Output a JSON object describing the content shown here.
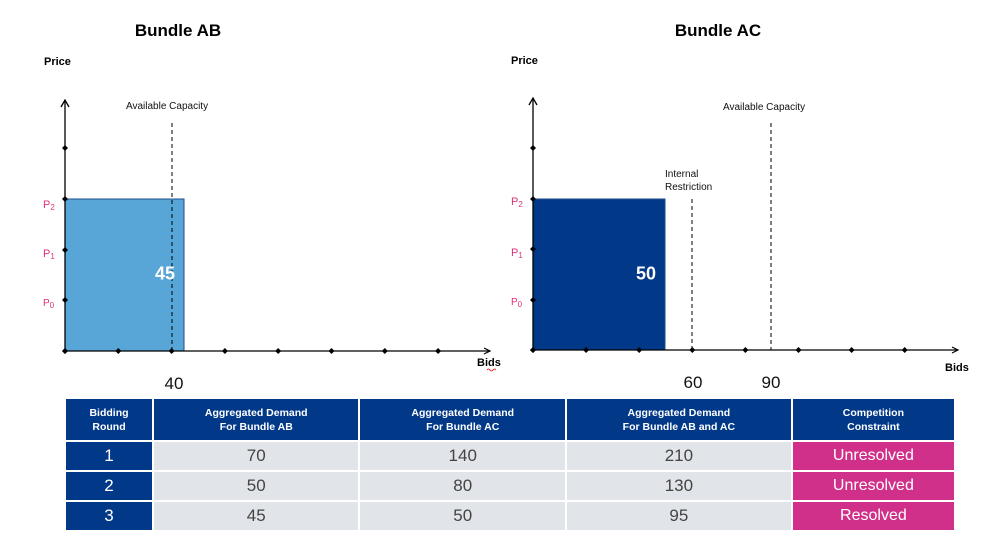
{
  "charts": [
    {
      "title": "Bundle AB",
      "ylabel": "Price",
      "xlabel": "Bids",
      "price_levels": [
        "P",
        "P",
        "P"
      ],
      "price_subs": [
        "2",
        "1",
        "0"
      ],
      "bar_value": "45",
      "bar_color": "#58a6d8",
      "lines": [
        {
          "label": "Available Capacity",
          "value": "40"
        }
      ]
    },
    {
      "title": "Bundle AC",
      "ylabel": "Price",
      "xlabel": "Bids",
      "price_levels": [
        "P",
        "P",
        "P"
      ],
      "price_subs": [
        "2",
        "1",
        "0"
      ],
      "bar_value": "50",
      "bar_color": "#013888",
      "lines": [
        {
          "label": "Internal Restriction",
          "label_line1": "Internal",
          "label_line2": "Restriction",
          "value": "60"
        },
        {
          "label": "Available Capacity",
          "value": "90"
        }
      ]
    }
  ],
  "table": {
    "headers": [
      [
        "Bidding",
        "Round"
      ],
      [
        "Aggregated Demand",
        "For Bundle AB"
      ],
      [
        "Aggregated Demand",
        "For Bundle AC"
      ],
      [
        "Aggregated Demand",
        "For Bundle AB and AC"
      ],
      [
        "Competition",
        "Constraint"
      ]
    ],
    "rows": [
      [
        "1",
        "70",
        "140",
        "210",
        "Unresolved"
      ],
      [
        "2",
        "50",
        "80",
        "130",
        "Unresolved"
      ],
      [
        "3",
        "45",
        "50",
        "95",
        "Resolved"
      ]
    ]
  },
  "colors": {
    "header": "#013888",
    "cell": "#e1e4e8",
    "status": "#d1308a",
    "price_label": "#e0317a"
  }
}
